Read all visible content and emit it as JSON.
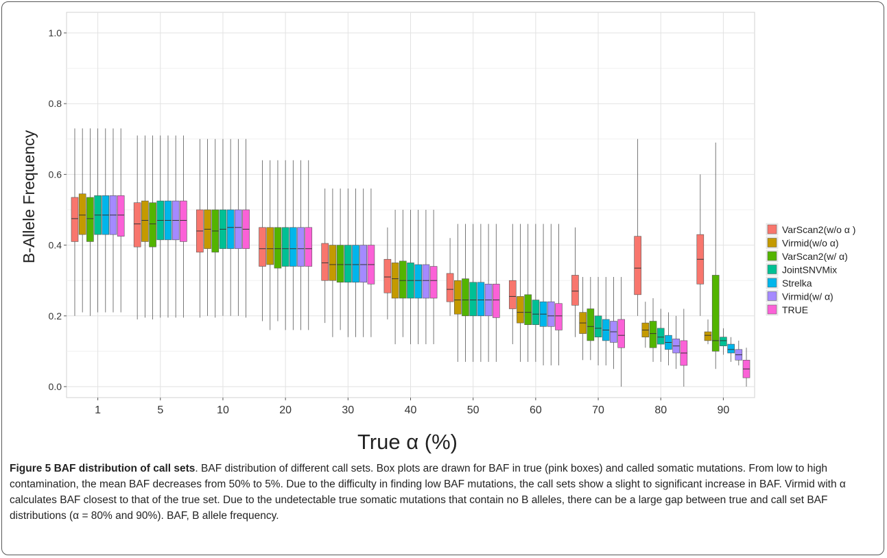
{
  "chart_data": {
    "type": "box",
    "xlabel": "True α (%)",
    "ylabel": "B-Allele Frequency",
    "ylim": [
      -0.03,
      1.03
    ],
    "yticks": [
      "0.0",
      "0.2",
      "0.4",
      "0.6",
      "0.8",
      "1.0"
    ],
    "ytick_values": [
      0.0,
      0.2,
      0.4,
      0.6,
      0.8,
      1.0
    ],
    "categories": [
      "1",
      "5",
      "10",
      "20",
      "30",
      "40",
      "50",
      "60",
      "70",
      "80",
      "90"
    ],
    "grid": true,
    "legend_position": "right",
    "series": [
      {
        "name": "VarScan2(w/o α )",
        "color": "#F8766D",
        "boxes": [
          [
            0.2,
            0.41,
            0.475,
            0.535,
            0.73
          ],
          [
            0.19,
            0.395,
            0.46,
            0.52,
            0.71
          ],
          [
            0.195,
            0.38,
            0.44,
            0.5,
            0.7
          ],
          [
            0.185,
            0.34,
            0.39,
            0.45,
            0.64
          ],
          [
            0.18,
            0.3,
            0.35,
            0.405,
            0.56
          ],
          [
            0.19,
            0.265,
            0.31,
            0.36,
            0.45
          ],
          [
            0.2,
            0.24,
            0.275,
            0.32,
            0.42
          ],
          [
            0.12,
            0.22,
            0.255,
            0.3,
            0.46
          ],
          [
            0.14,
            0.23,
            0.27,
            0.315,
            0.45
          ],
          [
            0.2,
            0.26,
            0.335,
            0.425,
            0.7
          ],
          [
            0.2,
            0.29,
            0.36,
            0.43,
            0.6
          ]
        ]
      },
      {
        "name": "Virmid(w/o α)",
        "color": "#C49A00",
        "boxes": [
          [
            0.21,
            0.43,
            0.485,
            0.545,
            0.73
          ],
          [
            0.195,
            0.41,
            0.47,
            0.525,
            0.71
          ],
          [
            0.2,
            0.39,
            0.445,
            0.5,
            0.7
          ],
          [
            0.16,
            0.345,
            0.39,
            0.45,
            0.64
          ],
          [
            0.14,
            0.3,
            0.345,
            0.4,
            0.56
          ],
          [
            0.12,
            0.25,
            0.305,
            0.35,
            0.5
          ],
          [
            0.07,
            0.205,
            0.245,
            0.3,
            0.46
          ],
          [
            0.07,
            0.18,
            0.21,
            0.255,
            0.46
          ],
          [
            0.075,
            0.15,
            0.18,
            0.21,
            0.31
          ],
          [
            0.11,
            0.14,
            0.16,
            0.18,
            0.24
          ],
          [
            0.12,
            0.13,
            0.145,
            0.155,
            0.19
          ]
        ]
      },
      {
        "name": "VarScan2(w/ α)",
        "color": "#53B400",
        "boxes": [
          [
            0.2,
            0.41,
            0.475,
            0.535,
            0.73
          ],
          [
            0.19,
            0.395,
            0.46,
            0.52,
            0.71
          ],
          [
            0.195,
            0.38,
            0.44,
            0.5,
            0.7
          ],
          [
            0.185,
            0.335,
            0.39,
            0.45,
            0.64
          ],
          [
            0.16,
            0.295,
            0.345,
            0.4,
            0.56
          ],
          [
            0.14,
            0.25,
            0.3,
            0.355,
            0.5
          ],
          [
            0.07,
            0.2,
            0.245,
            0.305,
            0.46
          ],
          [
            0.07,
            0.175,
            0.21,
            0.26,
            0.46
          ],
          [
            0.075,
            0.13,
            0.17,
            0.22,
            0.31
          ],
          [
            0.07,
            0.11,
            0.15,
            0.185,
            0.25
          ],
          [
            0.05,
            0.1,
            0.13,
            0.315,
            0.69
          ]
        ]
      },
      {
        "name": "JointSNVMix",
        "color": "#00C094",
        "boxes": [
          [
            0.21,
            0.43,
            0.485,
            0.54,
            0.73
          ],
          [
            0.195,
            0.415,
            0.47,
            0.525,
            0.71
          ],
          [
            0.2,
            0.39,
            0.445,
            0.5,
            0.7
          ],
          [
            0.16,
            0.34,
            0.39,
            0.45,
            0.64
          ],
          [
            0.14,
            0.295,
            0.345,
            0.4,
            0.56
          ],
          [
            0.12,
            0.25,
            0.3,
            0.35,
            0.5
          ],
          [
            0.07,
            0.2,
            0.245,
            0.295,
            0.46
          ],
          [
            0.07,
            0.175,
            0.205,
            0.245,
            0.46
          ],
          [
            0.06,
            0.14,
            0.165,
            0.2,
            0.31
          ],
          [
            0.07,
            0.12,
            0.14,
            0.165,
            0.22
          ],
          [
            0.09,
            0.115,
            0.13,
            0.14,
            0.165
          ]
        ]
      },
      {
        "name": "Strelka",
        "color": "#00B6EB",
        "boxes": [
          [
            0.21,
            0.43,
            0.485,
            0.54,
            0.73
          ],
          [
            0.195,
            0.415,
            0.47,
            0.525,
            0.71
          ],
          [
            0.2,
            0.39,
            0.45,
            0.5,
            0.7
          ],
          [
            0.16,
            0.34,
            0.39,
            0.45,
            0.64
          ],
          [
            0.14,
            0.295,
            0.345,
            0.4,
            0.56
          ],
          [
            0.12,
            0.25,
            0.3,
            0.345,
            0.5
          ],
          [
            0.07,
            0.2,
            0.245,
            0.295,
            0.46
          ],
          [
            0.06,
            0.17,
            0.205,
            0.24,
            0.46
          ],
          [
            0.06,
            0.13,
            0.16,
            0.19,
            0.31
          ],
          [
            0.06,
            0.105,
            0.125,
            0.145,
            0.21
          ],
          [
            0.07,
            0.095,
            0.105,
            0.12,
            0.14
          ]
        ]
      },
      {
        "name": "Virmid(w/ α)",
        "color": "#A58AFF",
        "boxes": [
          [
            0.21,
            0.43,
            0.485,
            0.54,
            0.73
          ],
          [
            0.195,
            0.415,
            0.47,
            0.525,
            0.71
          ],
          [
            0.2,
            0.39,
            0.45,
            0.5,
            0.7
          ],
          [
            0.16,
            0.34,
            0.39,
            0.45,
            0.64
          ],
          [
            0.14,
            0.295,
            0.345,
            0.4,
            0.56
          ],
          [
            0.12,
            0.25,
            0.3,
            0.345,
            0.5
          ],
          [
            0.07,
            0.2,
            0.245,
            0.29,
            0.46
          ],
          [
            0.06,
            0.17,
            0.2,
            0.24,
            0.46
          ],
          [
            0.05,
            0.125,
            0.155,
            0.185,
            0.31
          ],
          [
            0.05,
            0.095,
            0.115,
            0.135,
            0.2
          ],
          [
            0.06,
            0.075,
            0.09,
            0.105,
            0.13
          ]
        ]
      },
      {
        "name": "TRUE",
        "color": "#FB61D7",
        "boxes": [
          [
            0.21,
            0.425,
            0.485,
            0.54,
            0.73
          ],
          [
            0.195,
            0.41,
            0.47,
            0.525,
            0.71
          ],
          [
            0.195,
            0.39,
            0.445,
            0.5,
            0.7
          ],
          [
            0.16,
            0.34,
            0.39,
            0.45,
            0.64
          ],
          [
            0.14,
            0.29,
            0.345,
            0.4,
            0.56
          ],
          [
            0.12,
            0.25,
            0.3,
            0.34,
            0.5
          ],
          [
            0.07,
            0.195,
            0.245,
            0.29,
            0.46
          ],
          [
            0.06,
            0.16,
            0.2,
            0.235,
            0.46
          ],
          [
            0.0,
            0.11,
            0.145,
            0.19,
            0.31
          ],
          [
            0.0,
            0.06,
            0.095,
            0.13,
            0.22
          ],
          [
            0.0,
            0.025,
            0.05,
            0.075,
            0.11
          ]
        ]
      }
    ]
  },
  "caption": {
    "title": "Figure 5 BAF distribution of call sets",
    "text": ". BAF distribution of different call sets. Box plots are drawn for BAF in true (pink boxes) and called somatic mutations. From low to high contamination, the mean BAF decreases from 50% to 5%. Due to the difficulty in finding low BAF mutations, the call sets show a slight to significant increase in BAF. Virmid with α calculates BAF closest to that of the true set. Due to the undetectable true somatic mutations that contain no B alleles, there can be a large gap between true and call set BAF distributions (α = 80% and 90%). BAF, B allele frequency."
  }
}
